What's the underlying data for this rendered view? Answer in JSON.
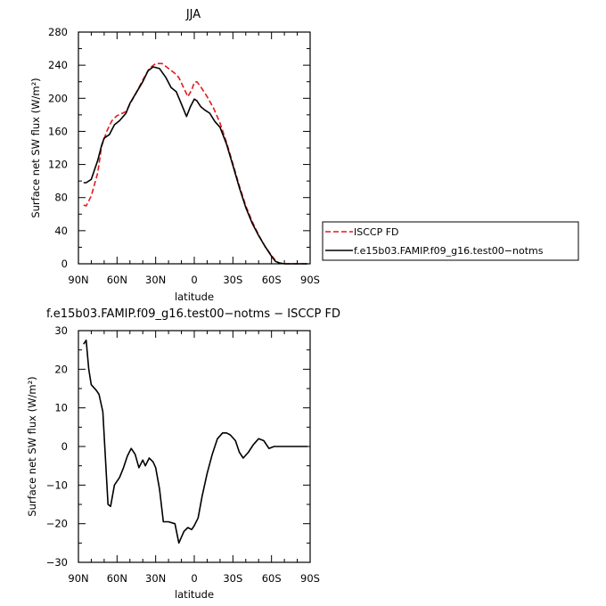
{
  "chart_data": [
    {
      "type": "line",
      "title": "JJA",
      "xlabel": "latitude",
      "ylabel": "Surface net SW flux (W/m²)",
      "ylim": [
        0,
        280
      ],
      "xlim": [
        90,
        -90
      ],
      "x_ticks": [
        90,
        60,
        30,
        0,
        -30,
        -60,
        -90
      ],
      "x_tick_labels": [
        "90N",
        "60N",
        "30N",
        "0",
        "30S",
        "60S",
        "90S"
      ],
      "y_ticks": [
        0,
        40,
        80,
        120,
        160,
        200,
        240,
        280
      ],
      "y_tick_labels": [
        "0",
        "40",
        "80",
        "120",
        "160",
        "200",
        "240",
        "280"
      ],
      "legend_position": "right",
      "series": [
        {
          "name": "ISCCP FD",
          "color": "#e31a1c",
          "dash": "dashed",
          "points": [
            [
              86,
              71
            ],
            [
              84,
              70
            ],
            [
              80,
              82
            ],
            [
              75,
              110
            ],
            [
              72,
              142
            ],
            [
              68,
              160
            ],
            [
              64,
              173
            ],
            [
              60,
              179
            ],
            [
              57,
              181
            ],
            [
              53,
              184
            ],
            [
              50,
              193
            ],
            [
              45,
              207
            ],
            [
              40,
              222
            ],
            [
              35,
              236
            ],
            [
              30,
              242
            ],
            [
              25,
              242
            ],
            [
              20,
              236
            ],
            [
              15,
              230
            ],
            [
              12,
              225
            ],
            [
              8,
              212
            ],
            [
              5,
              202
            ],
            [
              2,
              210
            ],
            [
              0,
              219
            ],
            [
              -2,
              220
            ],
            [
              -5,
              214
            ],
            [
              -10,
              202
            ],
            [
              -15,
              188
            ],
            [
              -20,
              170
            ],
            [
              -25,
              147
            ],
            [
              -30,
              121
            ],
            [
              -35,
              94
            ],
            [
              -40,
              70
            ],
            [
              -45,
              51
            ],
            [
              -50,
              35
            ],
            [
              -55,
              21
            ],
            [
              -60,
              10
            ],
            [
              -63,
              4
            ],
            [
              -66,
              1
            ],
            [
              -70,
              0
            ],
            [
              -80,
              0
            ],
            [
              -88,
              0
            ]
          ]
        },
        {
          "name": "f.e15b03.FAMIP.f09_g16.test00−notms",
          "color": "#000000",
          "dash": "solid",
          "points": [
            [
              86,
              98
            ],
            [
              84,
              98
            ],
            [
              80,
              102
            ],
            [
              75,
              125
            ],
            [
              72,
              143
            ],
            [
              70,
              152
            ],
            [
              66,
              156
            ],
            [
              62,
              168
            ],
            [
              58,
              173
            ],
            [
              53,
              182
            ],
            [
              50,
              194
            ],
            [
              45,
              207
            ],
            [
              40,
              220
            ],
            [
              36,
              233
            ],
            [
              32,
              238
            ],
            [
              27,
              236
            ],
            [
              22,
              225
            ],
            [
              18,
              213
            ],
            [
              14,
              208
            ],
            [
              10,
              193
            ],
            [
              6,
              178
            ],
            [
              3,
              190
            ],
            [
              0,
              199
            ],
            [
              -2,
              197
            ],
            [
              -5,
              190
            ],
            [
              -8,
              186
            ],
            [
              -12,
              182
            ],
            [
              -16,
              172
            ],
            [
              -20,
              165
            ],
            [
              -25,
              145
            ],
            [
              -30,
              119
            ],
            [
              -35,
              92
            ],
            [
              -40,
              68
            ],
            [
              -45,
              49
            ],
            [
              -50,
              34
            ],
            [
              -55,
              21
            ],
            [
              -60,
              9
            ],
            [
              -63,
              3
            ],
            [
              -66,
              1
            ],
            [
              -70,
              0
            ],
            [
              -80,
              0
            ],
            [
              -88,
              0
            ]
          ]
        }
      ]
    },
    {
      "type": "line",
      "title": "f.e15b03.FAMIP.f09_g16.test00−notms − ISCCP FD",
      "xlabel": "latitude",
      "ylabel": "Surface net SW flux (W/m²)",
      "ylim": [
        -30,
        30
      ],
      "xlim": [
        90,
        -90
      ],
      "x_ticks": [
        90,
        60,
        30,
        0,
        -30,
        -60,
        -90
      ],
      "x_tick_labels": [
        "90N",
        "60N",
        "30N",
        "0",
        "30S",
        "60S",
        "90S"
      ],
      "y_ticks": [
        -30,
        -20,
        -10,
        0,
        10,
        20,
        30
      ],
      "y_tick_labels": [
        "−30",
        "−20",
        "−10",
        "0",
        "10",
        "20",
        "30"
      ],
      "series": [
        {
          "name": "",
          "color": "#000000",
          "dash": "solid",
          "points": [
            [
              86,
              26.5
            ],
            [
              84,
              27.5
            ],
            [
              82,
              20
            ],
            [
              80,
              16
            ],
            [
              76,
              14.5
            ],
            [
              74,
              13.5
            ],
            [
              71,
              9
            ],
            [
              69,
              -3
            ],
            [
              67,
              -15
            ],
            [
              65,
              -15.5
            ],
            [
              62,
              -10
            ],
            [
              58,
              -8
            ],
            [
              55,
              -5.5
            ],
            [
              52,
              -2.5
            ],
            [
              49,
              -0.5
            ],
            [
              46,
              -2
            ],
            [
              43,
              -5.5
            ],
            [
              40,
              -3.5
            ],
            [
              38,
              -5
            ],
            [
              35,
              -3
            ],
            [
              32,
              -4
            ],
            [
              30,
              -5.5
            ],
            [
              27,
              -11
            ],
            [
              24,
              -19.5
            ],
            [
              20,
              -19.5
            ],
            [
              15,
              -20
            ],
            [
              12,
              -25
            ],
            [
              8,
              -22
            ],
            [
              5,
              -21
            ],
            [
              2,
              -21.5
            ],
            [
              0,
              -20.5
            ],
            [
              -3,
              -18.5
            ],
            [
              -6,
              -13
            ],
            [
              -10,
              -7
            ],
            [
              -14,
              -2
            ],
            [
              -18,
              2
            ],
            [
              -22,
              3.5
            ],
            [
              -25,
              3.5
            ],
            [
              -28,
              3
            ],
            [
              -32,
              1.5
            ],
            [
              -35,
              -1.5
            ],
            [
              -38,
              -3
            ],
            [
              -42,
              -1.5
            ],
            [
              -46,
              0.5
            ],
            [
              -50,
              2
            ],
            [
              -54,
              1.5
            ],
            [
              -58,
              -0.5
            ],
            [
              -62,
              0
            ],
            [
              -66,
              0
            ],
            [
              -70,
              0
            ],
            [
              -80,
              0
            ],
            [
              -88,
              0
            ]
          ]
        }
      ]
    }
  ],
  "legend": {
    "entries": [
      {
        "label": "ISCCP FD",
        "color": "#e31a1c",
        "dash": "dashed"
      },
      {
        "label": "f.e15b03.FAMIP.f09_g16.test00−notms",
        "color": "#000000",
        "dash": "solid"
      }
    ]
  }
}
